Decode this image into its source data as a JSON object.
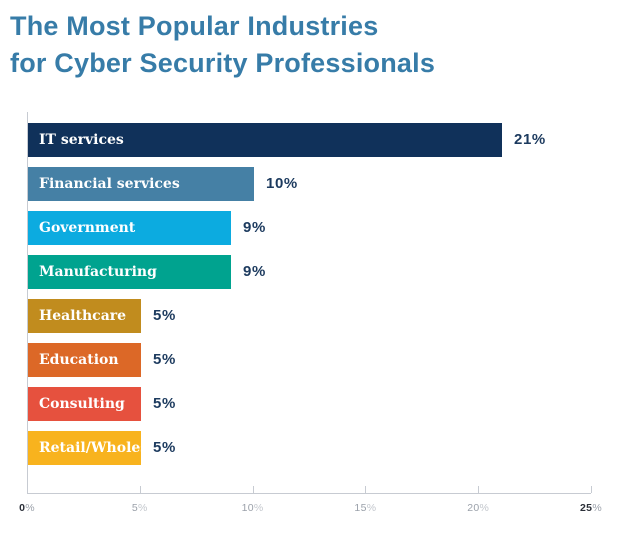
{
  "header": {
    "title_lines": [
      "The Most Popular Industries",
      "for Cyber Security Professionals"
    ]
  },
  "theme": {
    "background": "#FFFFFF",
    "title_color": "#377CA8",
    "bar_label_color": "#FFFFFF",
    "value_label_color": "#1C3A5E",
    "axis_line_color": "#C7CBD2",
    "tick_label_color": "#9BA1AA",
    "tick_label_emphasis_color": "#2B2F38"
  },
  "chart_data": {
    "type": "bar",
    "orientation": "horizontal",
    "title": "The Most Popular Industries for Cyber Security Professionals",
    "categories": [
      "IT services",
      "Financial services",
      "Government",
      "Manufacturing",
      "Healthcare",
      "Education",
      "Consulting",
      "Retail/Wholesale"
    ],
    "values": [
      21,
      10,
      9,
      9,
      5,
      5,
      5,
      5
    ],
    "value_labels": [
      "21%",
      "10%",
      "9%",
      "9%",
      "5%",
      "5%",
      "5%",
      "5%"
    ],
    "bar_colors": [
      "#10315A",
      "#4580A5",
      "#0CABE0",
      "#00A38F",
      "#C18C1E",
      "#DC6827",
      "#E6513E",
      "#F8B31E"
    ],
    "xlabel": "",
    "ylabel": "",
    "xlim": [
      0,
      25
    ],
    "x_ticks": [
      {
        "value": "0",
        "suffix": "%",
        "emphasis": true
      },
      {
        "value": "5",
        "suffix": "%",
        "emphasis": false
      },
      {
        "value": "10",
        "suffix": "%",
        "emphasis": false
      },
      {
        "value": "15",
        "suffix": "%",
        "emphasis": false
      },
      {
        "value": "20",
        "suffix": "%",
        "emphasis": false
      },
      {
        "value": "25",
        "suffix": "%",
        "emphasis": true
      }
    ],
    "grid": false,
    "legend": false
  }
}
